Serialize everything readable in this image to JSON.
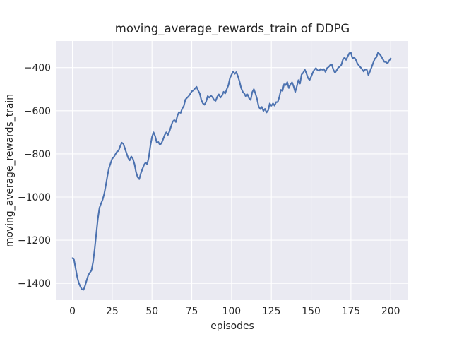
{
  "chart_data": {
    "type": "line",
    "title": "moving_average_rewards_train of DDPG",
    "xlabel": "episodes",
    "ylabel": "moving_average_rewards_train",
    "grid": true,
    "legend_position": "none",
    "xlim": [
      -10,
      211
    ],
    "ylim": [
      -1478,
      -276.5
    ],
    "x_ticks": [
      0,
      25,
      50,
      75,
      100,
      125,
      150,
      175,
      200
    ],
    "x_tick_labels": [
      "0",
      "25",
      "50",
      "75",
      "100",
      "125",
      "150",
      "175",
      "200"
    ],
    "y_ticks": [
      -400,
      -600,
      -800,
      -1000,
      -1200,
      -1400
    ],
    "y_tick_labels": [
      "−400",
      "−600",
      "−800",
      "−1000",
      "−1200",
      "−1400"
    ],
    "colors": {
      "line": "#4c72b0",
      "plot_bg": "#eaeaf2",
      "grid": "#ffffff",
      "text": "#262626",
      "figure_bg": "#ffffff"
    },
    "series": [
      {
        "name": "moving_average_rewards_train",
        "x_start": 0,
        "x_step": 1,
        "values": [
          -1283,
          -1290,
          -1330,
          -1370,
          -1398,
          -1415,
          -1428,
          -1430,
          -1410,
          -1385,
          -1362,
          -1350,
          -1340,
          -1300,
          -1240,
          -1170,
          -1100,
          -1050,
          -1030,
          -1012,
          -985,
          -945,
          -902,
          -865,
          -843,
          -822,
          -815,
          -802,
          -790,
          -785,
          -765,
          -748,
          -753,
          -775,
          -797,
          -818,
          -830,
          -812,
          -823,
          -847,
          -885,
          -908,
          -917,
          -890,
          -870,
          -851,
          -840,
          -848,
          -815,
          -762,
          -722,
          -700,
          -718,
          -748,
          -745,
          -758,
          -750,
          -732,
          -712,
          -700,
          -712,
          -695,
          -672,
          -650,
          -643,
          -652,
          -622,
          -606,
          -610,
          -590,
          -578,
          -548,
          -540,
          -533,
          -522,
          -510,
          -506,
          -497,
          -489,
          -506,
          -520,
          -550,
          -566,
          -572,
          -558,
          -532,
          -539,
          -530,
          -537,
          -550,
          -554,
          -535,
          -524,
          -539,
          -530,
          -512,
          -520,
          -500,
          -482,
          -448,
          -433,
          -418,
          -429,
          -421,
          -440,
          -464,
          -494,
          -512,
          -520,
          -535,
          -524,
          -542,
          -550,
          -514,
          -500,
          -520,
          -545,
          -580,
          -592,
          -582,
          -601,
          -591,
          -608,
          -598,
          -566,
          -577,
          -566,
          -576,
          -560,
          -560,
          -537,
          -503,
          -508,
          -477,
          -481,
          -467,
          -495,
          -478,
          -468,
          -487,
          -513,
          -487,
          -458,
          -474,
          -432,
          -424,
          -409,
          -426,
          -448,
          -458,
          -442,
          -424,
          -410,
          -402,
          -412,
          -415,
          -406,
          -410,
          -407,
          -420,
          -402,
          -397,
          -388,
          -386,
          -410,
          -424,
          -413,
          -400,
          -395,
          -387,
          -362,
          -353,
          -364,
          -348,
          -333,
          -331,
          -358,
          -352,
          -362,
          -380,
          -390,
          -398,
          -407,
          -418,
          -408,
          -410,
          -435,
          -417,
          -398,
          -378,
          -359,
          -352,
          -331,
          -337,
          -347,
          -360,
          -373,
          -374,
          -381,
          -368,
          -357
        ]
      }
    ]
  }
}
